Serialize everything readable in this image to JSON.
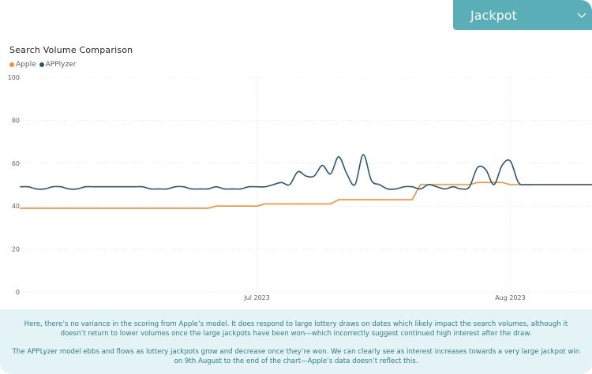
{
  "filter": {
    "selected": "Jackpot",
    "chevron_icon": "chevron-down-icon",
    "background": "#5aaeb7"
  },
  "chart_data": {
    "type": "line",
    "title": "Search Volume Comparison",
    "xlabel": "",
    "ylabel": "",
    "ylim": [
      0,
      100
    ],
    "y_ticks": [
      "0",
      "20",
      "40",
      "60",
      "80",
      "100"
    ],
    "x_range": [
      "2023-06-01",
      "2023-08-11"
    ],
    "x_ticks": [
      {
        "date": "2023-07-01",
        "label": "Jul 2023"
      },
      {
        "date": "2023-08-01",
        "label": "Aug 2023"
      }
    ],
    "grid": true,
    "legend_position": "top-left",
    "series": [
      {
        "name": "Apple",
        "color": "#f28e3c",
        "x": [
          "2023-06-02",
          "2023-06-10",
          "2023-06-18",
          "2023-06-25",
          "2023-06-26",
          "2023-07-01",
          "2023-07-02",
          "2023-07-10",
          "2023-07-11",
          "2023-07-20",
          "2023-07-21",
          "2023-07-27",
          "2023-07-28",
          "2023-07-31",
          "2023-08-01",
          "2023-08-11"
        ],
        "y": [
          39,
          39,
          39,
          39,
          40,
          40,
          41,
          41,
          43,
          43,
          50,
          50,
          51,
          51,
          50,
          50
        ]
      },
      {
        "name": "APPlyzer",
        "color": "#2e5470",
        "x": [
          "2023-06-02",
          "2023-06-03",
          "2023-06-04",
          "2023-06-05",
          "2023-06-06",
          "2023-06-07",
          "2023-06-08",
          "2023-06-09",
          "2023-06-10",
          "2023-06-11",
          "2023-06-12",
          "2023-06-13",
          "2023-06-14",
          "2023-06-15",
          "2023-06-16",
          "2023-06-17",
          "2023-06-18",
          "2023-06-19",
          "2023-06-20",
          "2023-06-21",
          "2023-06-22",
          "2023-06-23",
          "2023-06-24",
          "2023-06-25",
          "2023-06-26",
          "2023-06-27",
          "2023-06-28",
          "2023-06-29",
          "2023-06-30",
          "2023-07-01",
          "2023-07-02",
          "2023-07-03",
          "2023-07-04",
          "2023-07-05",
          "2023-07-06",
          "2023-07-07",
          "2023-07-08",
          "2023-07-09",
          "2023-07-10",
          "2023-07-11",
          "2023-07-12",
          "2023-07-13",
          "2023-07-14",
          "2023-07-15",
          "2023-07-16",
          "2023-07-17",
          "2023-07-18",
          "2023-07-19",
          "2023-07-20",
          "2023-07-21",
          "2023-07-22",
          "2023-07-23",
          "2023-07-24",
          "2023-07-25",
          "2023-07-26",
          "2023-07-27",
          "2023-07-28",
          "2023-07-29",
          "2023-07-30",
          "2023-07-31",
          "2023-08-01",
          "2023-08-02",
          "2023-08-03",
          "2023-08-04",
          "2023-08-05",
          "2023-08-06",
          "2023-08-07",
          "2023-08-08",
          "2023-08-09",
          "2023-08-10",
          "2023-08-11"
        ],
        "y": [
          49,
          49,
          48,
          48,
          49,
          49,
          48,
          48,
          49,
          49,
          49,
          49,
          49,
          49,
          49,
          49,
          48,
          48,
          48,
          49,
          49,
          48,
          48,
          48,
          49,
          48,
          48,
          48,
          49,
          49,
          49,
          50,
          51,
          50,
          56,
          54,
          54,
          59,
          55,
          63,
          55,
          50,
          64,
          52,
          50,
          48,
          48,
          49,
          49,
          48,
          50,
          49,
          48,
          49,
          48,
          49,
          58,
          57,
          50,
          59,
          61,
          51,
          50,
          50,
          50,
          50,
          50,
          50,
          50,
          50,
          50
        ]
      }
    ]
  },
  "footer": {
    "paragraph1": "Here, there’s no variance in the scoring from Apple’s model. It does respond to large lottery draws on dates which likely impact the search volumes, although it doesn’t return to lower volumes once the large jackpots have been won—which incorrectly suggest continued high interest after the draw.",
    "paragraph2": "The APPLyzer model ebbs and flows as lottery jackpots grow and decrease once they’re won. We can clearly see as interest increases towards a very large jackpot win on 9th August to the end of the chart—Apple’s data doesn’t reflect this."
  }
}
